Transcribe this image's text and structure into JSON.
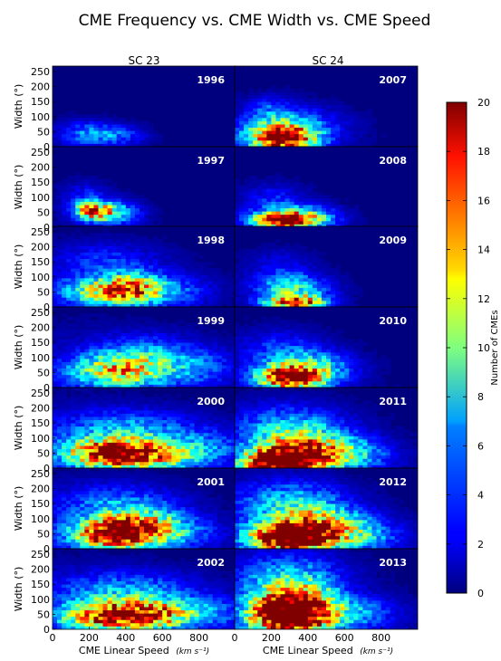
{
  "chart_data": {
    "type": "heatmap",
    "title": "CME Frequency vs. CME Width vs. CME Speed",
    "columns": [
      "SC 23",
      "SC 24"
    ],
    "xlabel": "CME Linear Speed",
    "xlabel_unit": "(km s⁻¹)",
    "ylabel": "Width (°)",
    "xlim": [
      0,
      1000
    ],
    "ylim": [
      0,
      250
    ],
    "xticks": [
      0,
      200,
      400,
      600,
      800
    ],
    "xtick_labels": [
      "0",
      "200",
      "400",
      "600",
      "800"
    ],
    "yticks": [
      0,
      50,
      100,
      150,
      200,
      250
    ],
    "ytick_labels": [
      "0",
      "50",
      "100",
      "150",
      "200",
      "250"
    ],
    "colorbar": {
      "label": "Number of CMEs",
      "min": 0,
      "max": 20,
      "ticks": [
        0,
        2,
        4,
        6,
        8,
        10,
        12,
        14,
        16,
        18,
        20
      ],
      "colormap": "jet"
    },
    "panels": [
      {
        "year": "1996",
        "column": "SC 23",
        "row": 0,
        "hotspots": [
          {
            "speed": 200,
            "width": 40,
            "peak": 5,
            "sx": 110,
            "sy": 25
          },
          {
            "speed": 380,
            "width": 35,
            "peak": 3,
            "sx": 90,
            "sy": 20
          }
        ],
        "floor": 0.4
      },
      {
        "year": "2007",
        "column": "SC 24",
        "row": 0,
        "hotspots": [
          {
            "speed": 260,
            "width": 25,
            "peak": 20,
            "sx": 120,
            "sy": 28
          },
          {
            "speed": 300,
            "width": 60,
            "peak": 6,
            "sx": 180,
            "sy": 40
          },
          {
            "speed": 200,
            "width": 110,
            "peak": 3,
            "sx": 80,
            "sy": 30
          }
        ],
        "floor": 0.6
      },
      {
        "year": "1997",
        "column": "SC 23",
        "row": 1,
        "hotspots": [
          {
            "speed": 220,
            "width": 50,
            "peak": 14,
            "sx": 70,
            "sy": 18
          },
          {
            "speed": 340,
            "width": 45,
            "peak": 7,
            "sx": 90,
            "sy": 25
          },
          {
            "speed": 180,
            "width": 90,
            "peak": 3,
            "sx": 80,
            "sy": 30
          }
        ],
        "floor": 0.5
      },
      {
        "year": "2008",
        "column": "SC 24",
        "row": 1,
        "hotspots": [
          {
            "speed": 260,
            "width": 22,
            "peak": 17,
            "sx": 120,
            "sy": 18
          },
          {
            "speed": 380,
            "width": 30,
            "peak": 8,
            "sx": 120,
            "sy": 25
          },
          {
            "speed": 220,
            "width": 80,
            "peak": 3,
            "sx": 110,
            "sy": 35
          }
        ],
        "floor": 0.5
      },
      {
        "year": "1998",
        "column": "SC 23",
        "row": 2,
        "hotspots": [
          {
            "speed": 300,
            "width": 50,
            "peak": 12,
            "sx": 160,
            "sy": 30
          },
          {
            "speed": 450,
            "width": 60,
            "peak": 9,
            "sx": 100,
            "sy": 30
          },
          {
            "speed": 650,
            "width": 50,
            "peak": 4,
            "sx": 150,
            "sy": 35
          },
          {
            "speed": 300,
            "width": 140,
            "peak": 3,
            "sx": 200,
            "sy": 40
          }
        ],
        "floor": 1.0
      },
      {
        "year": "2009",
        "column": "SC 24",
        "row": 2,
        "hotspots": [
          {
            "speed": 330,
            "width": 15,
            "peak": 16,
            "sx": 110,
            "sy": 14
          },
          {
            "speed": 320,
            "width": 55,
            "peak": 8,
            "sx": 130,
            "sy": 30
          },
          {
            "speed": 250,
            "width": 120,
            "peak": 2,
            "sx": 120,
            "sy": 40
          }
        ],
        "floor": 0.5
      },
      {
        "year": "1999",
        "column": "SC 23",
        "row": 3,
        "hotspots": [
          {
            "speed": 350,
            "width": 50,
            "peak": 10,
            "sx": 180,
            "sy": 35
          },
          {
            "speed": 500,
            "width": 90,
            "peak": 6,
            "sx": 200,
            "sy": 45
          },
          {
            "speed": 800,
            "width": 60,
            "peak": 3,
            "sx": 150,
            "sy": 40
          }
        ],
        "floor": 1.4
      },
      {
        "year": "2010",
        "column": "SC 24",
        "row": 3,
        "hotspots": [
          {
            "speed": 300,
            "width": 30,
            "peak": 18,
            "sx": 120,
            "sy": 25
          },
          {
            "speed": 400,
            "width": 60,
            "peak": 9,
            "sx": 150,
            "sy": 35
          },
          {
            "speed": 250,
            "width": 120,
            "peak": 3,
            "sx": 150,
            "sy": 40
          }
        ],
        "floor": 0.8
      },
      {
        "year": "2000",
        "column": "SC 23",
        "row": 4,
        "hotspots": [
          {
            "speed": 300,
            "width": 45,
            "peak": 17,
            "sx": 160,
            "sy": 30
          },
          {
            "speed": 550,
            "width": 40,
            "peak": 11,
            "sx": 150,
            "sy": 30
          },
          {
            "speed": 400,
            "width": 110,
            "peak": 6,
            "sx": 250,
            "sy": 45
          },
          {
            "speed": 850,
            "width": 60,
            "peak": 4,
            "sx": 150,
            "sy": 40
          }
        ],
        "floor": 1.6
      },
      {
        "year": "2011",
        "column": "SC 24",
        "row": 4,
        "hotspots": [
          {
            "speed": 250,
            "width": 20,
            "peak": 24,
            "sx": 140,
            "sy": 25
          },
          {
            "speed": 380,
            "width": 55,
            "peak": 13,
            "sx": 170,
            "sy": 40
          },
          {
            "speed": 300,
            "width": 120,
            "peak": 6,
            "sx": 200,
            "sy": 50
          },
          {
            "speed": 650,
            "width": 40,
            "peak": 5,
            "sx": 150,
            "sy": 35
          }
        ],
        "floor": 1.2
      },
      {
        "year": "2001",
        "column": "SC 23",
        "row": 5,
        "hotspots": [
          {
            "speed": 330,
            "width": 45,
            "peak": 19,
            "sx": 150,
            "sy": 30
          },
          {
            "speed": 480,
            "width": 70,
            "peak": 10,
            "sx": 150,
            "sy": 35
          },
          {
            "speed": 350,
            "width": 130,
            "peak": 5,
            "sx": 220,
            "sy": 45
          },
          {
            "speed": 700,
            "width": 50,
            "peak": 4,
            "sx": 150,
            "sy": 35
          }
        ],
        "floor": 1.4
      },
      {
        "year": "2012",
        "column": "SC 24",
        "row": 5,
        "hotspots": [
          {
            "speed": 300,
            "width": 35,
            "peak": 22,
            "sx": 150,
            "sy": 30
          },
          {
            "speed": 450,
            "width": 70,
            "peak": 12,
            "sx": 170,
            "sy": 40
          },
          {
            "speed": 300,
            "width": 140,
            "peak": 6,
            "sx": 200,
            "sy": 50
          },
          {
            "speed": 700,
            "width": 40,
            "peak": 5,
            "sx": 150,
            "sy": 35
          }
        ],
        "floor": 1.3
      },
      {
        "year": "2002",
        "column": "SC 23",
        "row": 6,
        "hotspots": [
          {
            "speed": 300,
            "width": 40,
            "peak": 16,
            "sx": 170,
            "sy": 30
          },
          {
            "speed": 560,
            "width": 45,
            "peak": 11,
            "sx": 150,
            "sy": 30
          },
          {
            "speed": 400,
            "width": 110,
            "peak": 6,
            "sx": 250,
            "sy": 45
          },
          {
            "speed": 850,
            "width": 50,
            "peak": 4,
            "sx": 150,
            "sy": 35
          }
        ],
        "floor": 1.5
      },
      {
        "year": "2013",
        "column": "SC 24",
        "row": 6,
        "hotspots": [
          {
            "speed": 300,
            "width": 40,
            "peak": 26,
            "sx": 150,
            "sy": 38
          },
          {
            "speed": 320,
            "width": 100,
            "peak": 12,
            "sx": 150,
            "sy": 40
          },
          {
            "speed": 300,
            "width": 170,
            "peak": 5,
            "sx": 200,
            "sy": 50
          },
          {
            "speed": 650,
            "width": 50,
            "peak": 5,
            "sx": 160,
            "sy": 35
          }
        ],
        "floor": 1.3
      }
    ]
  }
}
